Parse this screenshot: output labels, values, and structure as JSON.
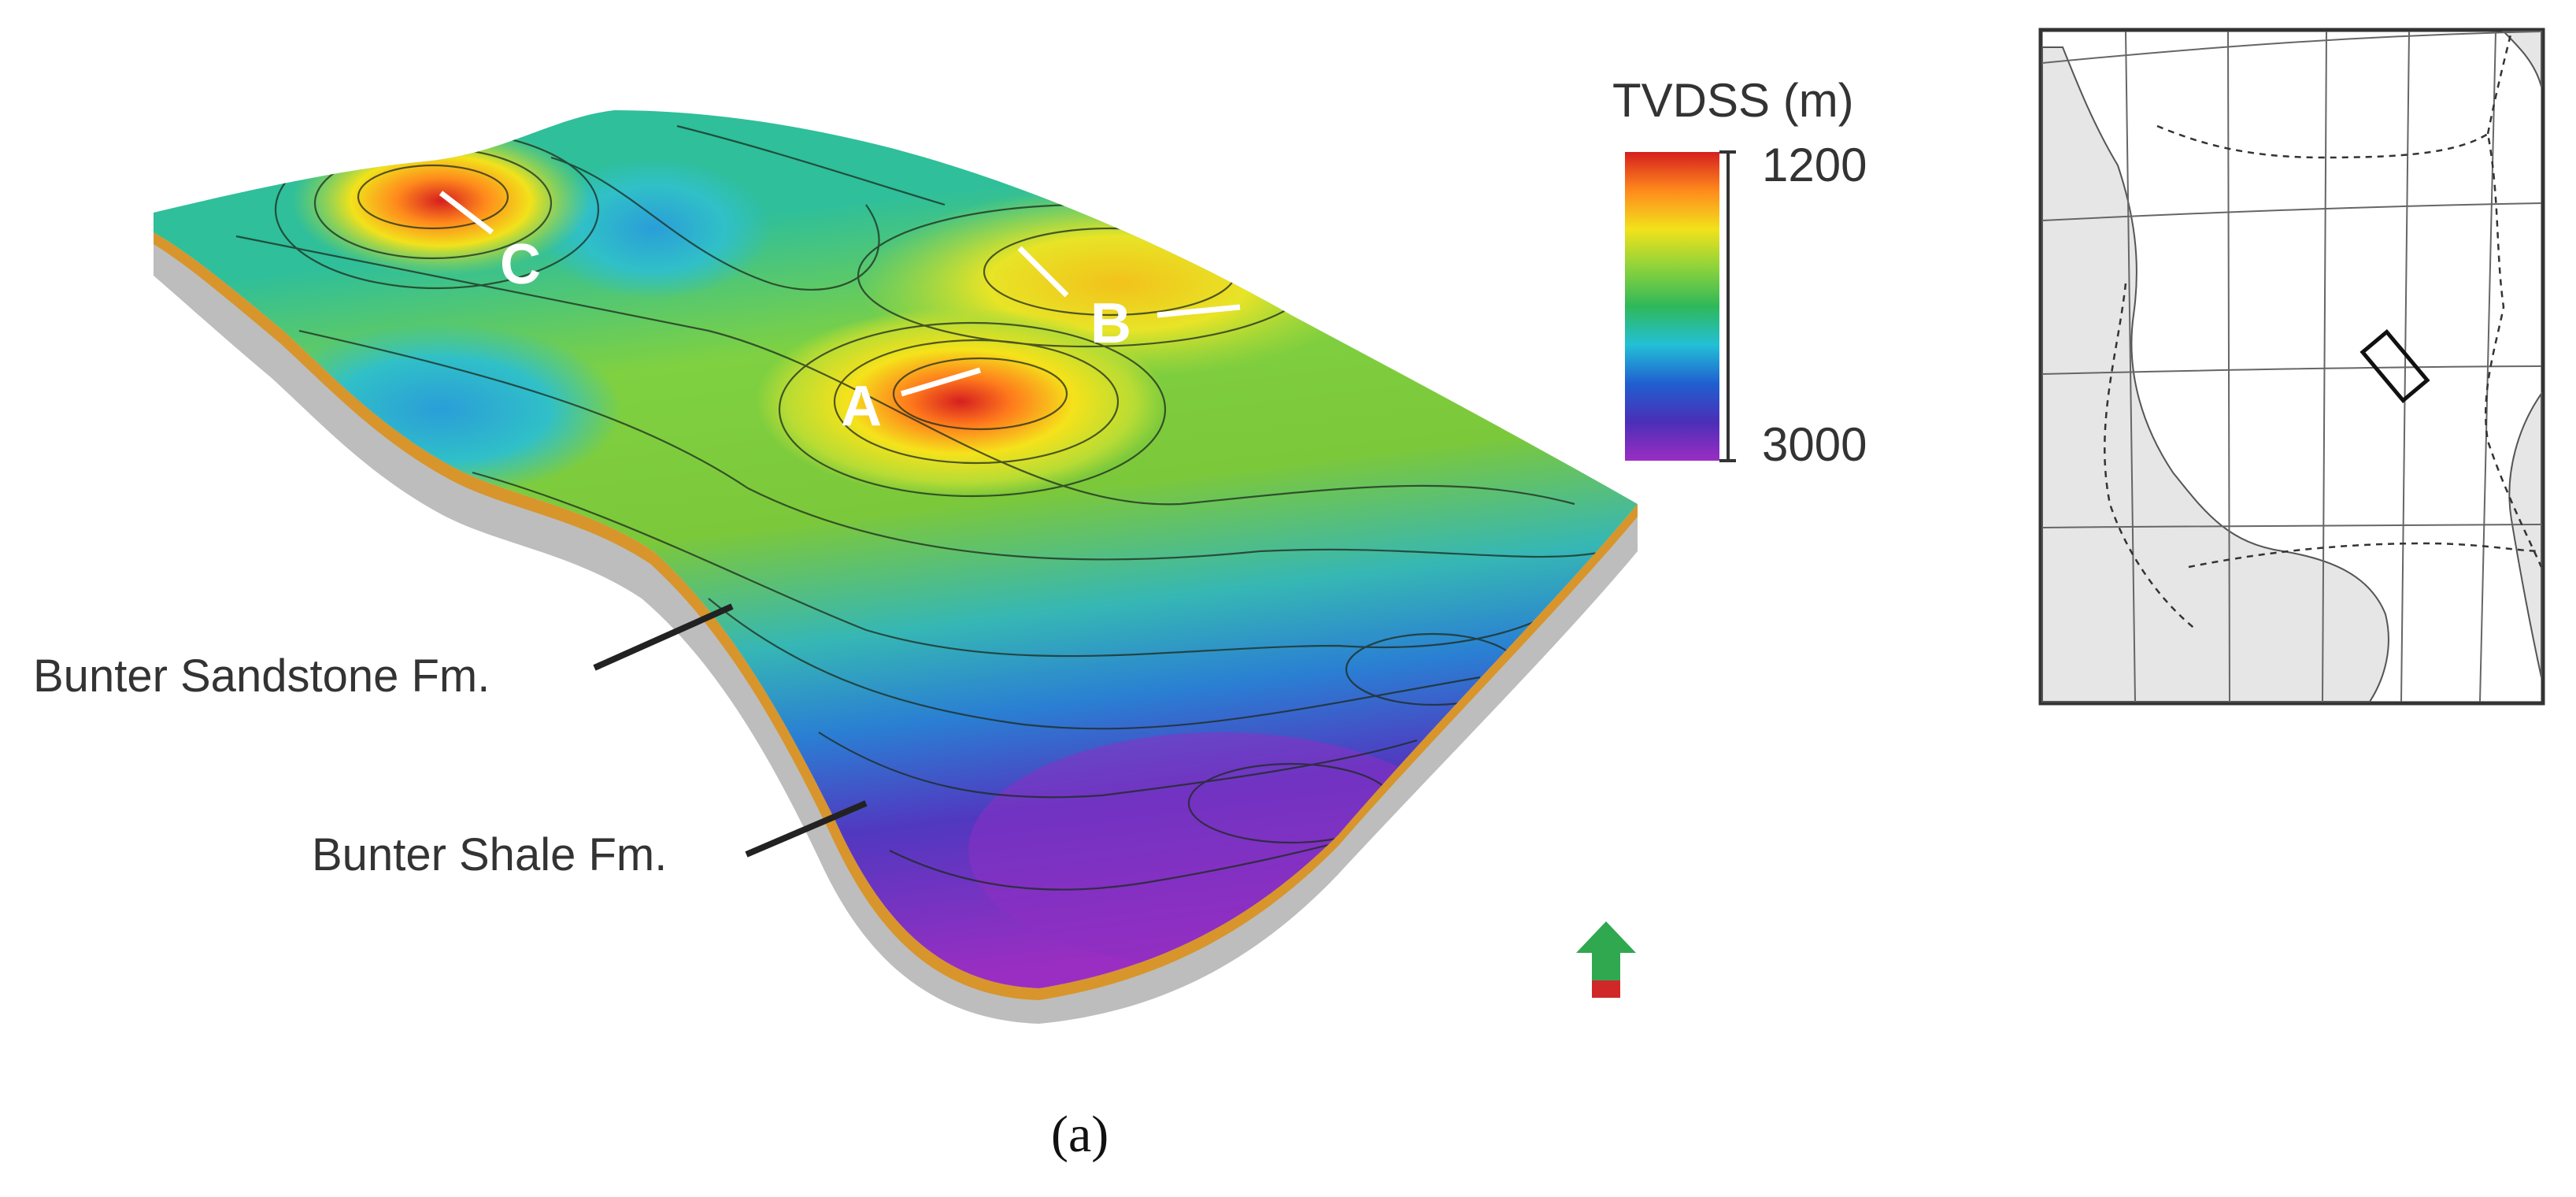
{
  "colorbar": {
    "title": "TVDSS (m)",
    "top_value": "1200",
    "bottom_value": "3000",
    "stops": [
      "#d61f1f",
      "#ff8a1c",
      "#f2e21b",
      "#8cd33b",
      "#2fb85a",
      "#23c0d6",
      "#1f5fd0",
      "#4b2fb8",
      "#9a2ec2"
    ]
  },
  "points": {
    "a": "A",
    "b": "B",
    "c": "C"
  },
  "formations": {
    "sandstone": "Bunter Sandstone Fm.",
    "shale": "Bunter Shale Fm."
  },
  "caption": "(a)",
  "colors": {
    "sandstone_layer": "#d8952b",
    "shale_layer": "#bdbdbd",
    "land": "#e6e6e6",
    "north_arrow_head": "#2fa84f",
    "north_arrow_tail": "#d02828"
  }
}
